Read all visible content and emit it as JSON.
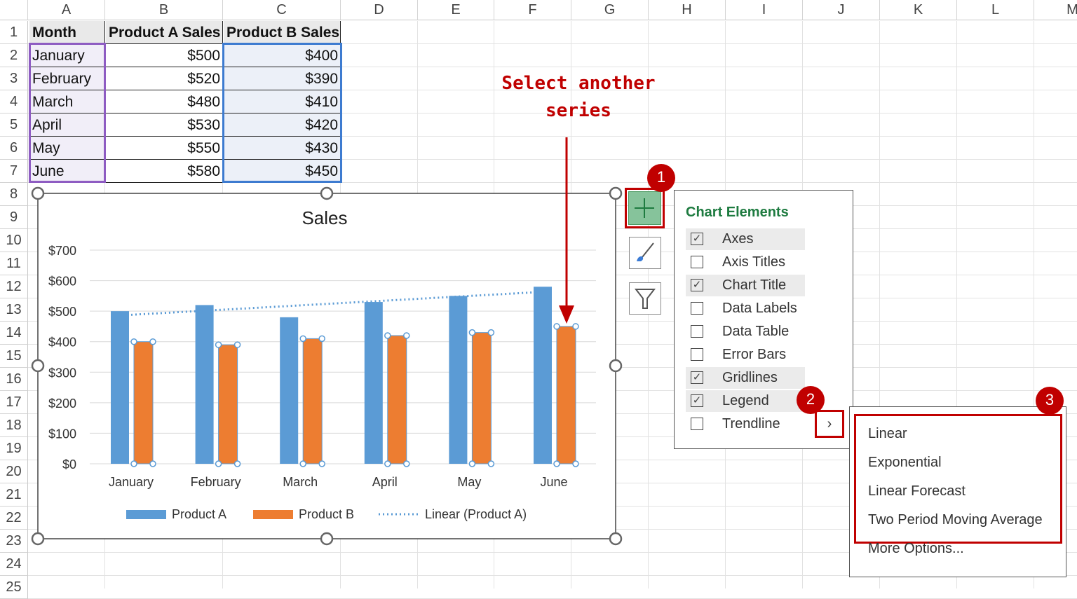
{
  "columns": [
    "A",
    "B",
    "C",
    "D",
    "E",
    "F",
    "G",
    "H",
    "I",
    "J",
    "K",
    "L",
    "M"
  ],
  "rows": [
    "1",
    "2",
    "3",
    "4",
    "5",
    "6",
    "7",
    "8",
    "9",
    "10",
    "11",
    "12",
    "13",
    "14",
    "15",
    "16",
    "17",
    "18",
    "19",
    "20",
    "21",
    "22",
    "23",
    "24",
    "25"
  ],
  "table": {
    "headers": [
      "Month",
      "Product A Sales",
      "Product B Sales"
    ],
    "rows": [
      [
        "January",
        "$500",
        "$400"
      ],
      [
        "February",
        "$520",
        "$390"
      ],
      [
        "March",
        "$480",
        "$410"
      ],
      [
        "April",
        "$530",
        "$420"
      ],
      [
        "May",
        "$550",
        "$430"
      ],
      [
        "June",
        "$580",
        "$450"
      ]
    ]
  },
  "annotation": {
    "line1": "Select another",
    "line2": "series",
    "color": "#c00000"
  },
  "chart_data": {
    "type": "bar",
    "title": "Sales",
    "categories": [
      "January",
      "February",
      "March",
      "April",
      "May",
      "June"
    ],
    "series": [
      {
        "name": "Product A",
        "values": [
          500,
          520,
          480,
          530,
          550,
          580
        ],
        "color": "#5b9bd5"
      },
      {
        "name": "Product B",
        "values": [
          400,
          390,
          410,
          420,
          430,
          450
        ],
        "color": "#ed7d31",
        "selected": true
      }
    ],
    "trendline": {
      "name": "Linear (Product A)",
      "type": "linear",
      "series": "Product A",
      "color": "#5b9bd5"
    },
    "yticks": [
      "$0",
      "$100",
      "$200",
      "$300",
      "$400",
      "$500",
      "$600",
      "$700"
    ],
    "ylim": [
      0,
      700
    ],
    "grid": true,
    "legend": "bottom"
  },
  "chart_elements": {
    "title": "Chart Elements",
    "items": [
      {
        "label": "Axes",
        "checked": true
      },
      {
        "label": "Axis Titles",
        "checked": false
      },
      {
        "label": "Chart Title",
        "checked": true
      },
      {
        "label": "Data Labels",
        "checked": false
      },
      {
        "label": "Data Table",
        "checked": false
      },
      {
        "label": "Error Bars",
        "checked": false
      },
      {
        "label": "Gridlines",
        "checked": true
      },
      {
        "label": "Legend",
        "checked": true
      },
      {
        "label": "Trendline",
        "checked": false
      }
    ]
  },
  "trendline_menu": [
    "Linear",
    "Exponential",
    "Linear Forecast",
    "Two Period Moving Average",
    "More Options..."
  ],
  "badges": [
    "1",
    "2",
    "3"
  ]
}
